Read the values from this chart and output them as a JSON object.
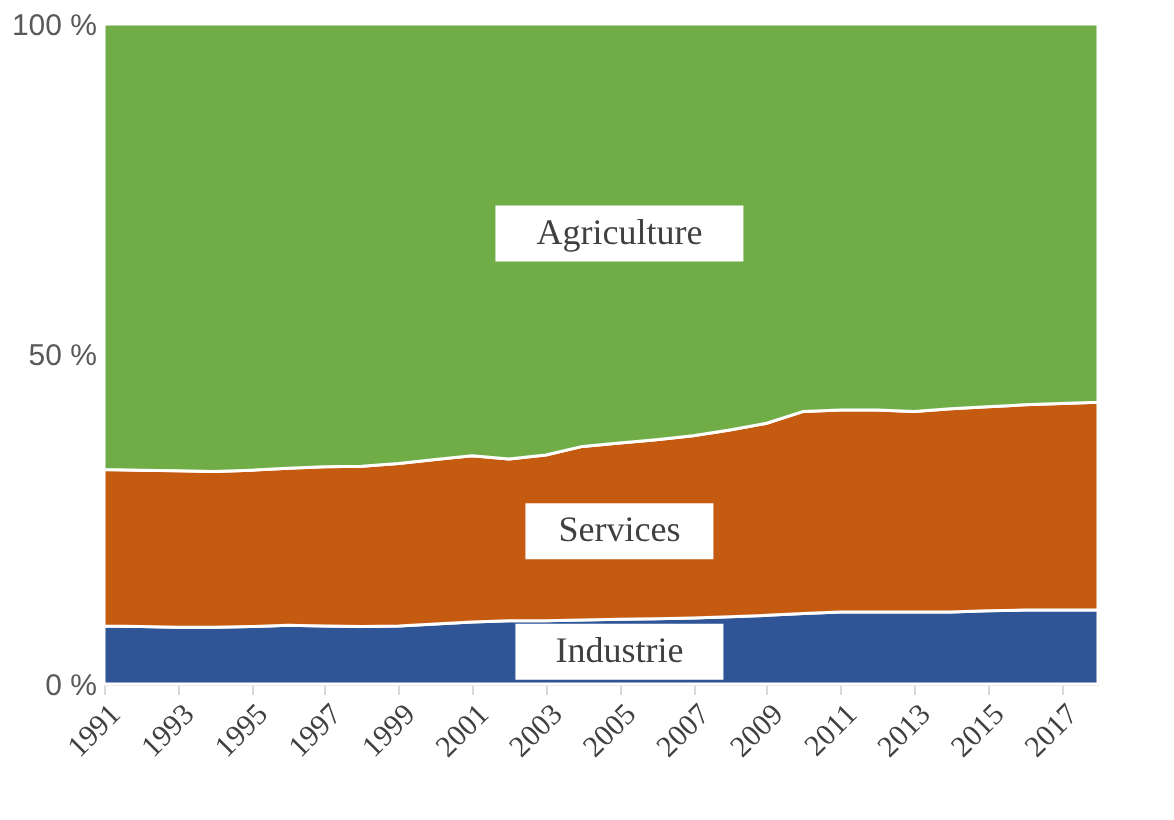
{
  "chart_data": {
    "type": "area",
    "stacked": true,
    "x": [
      1991,
      1992,
      1993,
      1994,
      1995,
      1996,
      1997,
      1998,
      1999,
      2000,
      2001,
      2002,
      2003,
      2004,
      2005,
      2006,
      2007,
      2008,
      2009,
      2010,
      2011,
      2012,
      2013,
      2014,
      2015,
      2016,
      2017,
      2018
    ],
    "series": [
      {
        "name": "Industrie",
        "color": "#2f5597",
        "values": [
          8.8,
          8.7,
          8.6,
          8.6,
          8.7,
          8.9,
          8.8,
          8.7,
          8.8,
          9.1,
          9.4,
          9.6,
          9.6,
          9.7,
          9.8,
          9.9,
          10.0,
          10.2,
          10.4,
          10.7,
          10.9,
          10.9,
          10.9,
          10.9,
          11.1,
          11.2,
          11.2,
          11.2
        ]
      },
      {
        "name": "Services",
        "color": "#c55a11",
        "values": [
          23.7,
          23.7,
          23.7,
          23.6,
          23.7,
          23.8,
          24.1,
          24.3,
          24.6,
          24.9,
          25.2,
          24.5,
          25.1,
          26.3,
          26.7,
          27.1,
          27.6,
          28.3,
          29.1,
          30.6,
          30.6,
          30.6,
          30.4,
          30.8,
          30.9,
          31.1,
          31.3,
          31.5
        ]
      },
      {
        "name": "Agriculture",
        "color": "#70ad47",
        "values": [
          67.5,
          67.6,
          67.7,
          67.8,
          67.6,
          67.3,
          67.1,
          67.0,
          66.6,
          66.0,
          65.4,
          65.9,
          65.3,
          64.0,
          63.5,
          63.0,
          62.4,
          61.5,
          60.5,
          58.7,
          58.5,
          58.5,
          58.7,
          58.3,
          58.0,
          57.7,
          57.5,
          57.3
        ]
      }
    ],
    "xlim": [
      1991,
      2018
    ],
    "xticks": [
      1991,
      1993,
      1995,
      1997,
      1999,
      2001,
      2003,
      2005,
      2007,
      2009,
      2011,
      2013,
      2015,
      2017
    ],
    "ylim": [
      0,
      100
    ],
    "yticks": [
      {
        "value": 0,
        "label": "0 %"
      },
      {
        "value": 50,
        "label": "50 %"
      },
      {
        "value": 100,
        "label": "100 %"
      }
    ],
    "legend": false
  }
}
